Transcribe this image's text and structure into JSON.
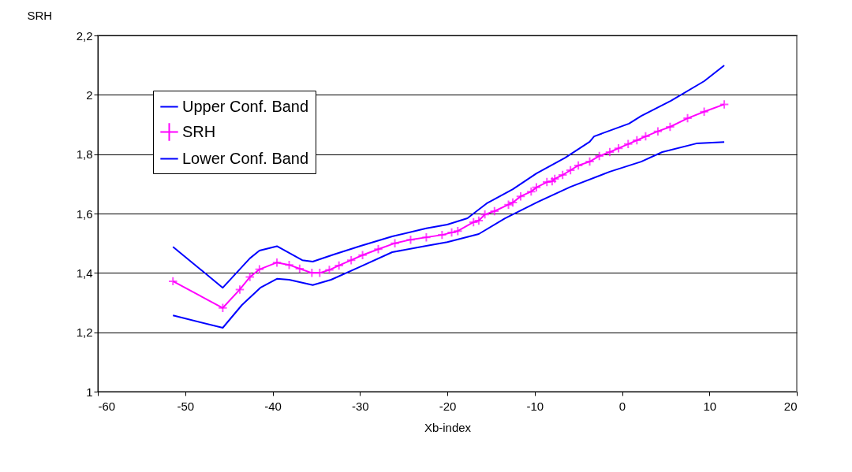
{
  "chart_data": {
    "type": "line",
    "xlabel": "Xb-index",
    "ylabel": "SRH",
    "xlim": [
      -60,
      20
    ],
    "xticks": [
      -60,
      -50,
      -40,
      -30,
      -20,
      -10,
      0,
      10,
      20
    ],
    "ylim": [
      1,
      2.2
    ],
    "yticks": [
      1,
      {
        "value": 1.2,
        "label": "1,2"
      },
      {
        "value": 1.4,
        "label": "1,4"
      },
      {
        "value": 1.6,
        "label": "1,6"
      },
      {
        "value": 1.8,
        "label": "1,8"
      },
      2,
      {
        "value": 2.2,
        "label": "2,2"
      }
    ],
    "grid": "y",
    "legend": "top left",
    "line_style": "solid",
    "series": [
      {
        "name": "Upper Conf. Band",
        "color": "#0000ff",
        "marker": "none",
        "x": [
          -51.4,
          -45.7,
          -42.6,
          -41.5,
          -39.5,
          -36.6,
          -35.4,
          -33.0,
          -29.9,
          -26.3,
          -22.4,
          -20.0,
          -17.7,
          -15.5,
          -12.5,
          -9.8,
          -6.5,
          -3.7,
          -3.2,
          0.8,
          2.2,
          5.6,
          9.4,
          11.7
        ],
        "values": [
          1.488,
          1.35,
          1.449,
          1.475,
          1.49,
          1.443,
          1.438,
          1.462,
          1.491,
          1.523,
          1.55,
          1.563,
          1.584,
          1.634,
          1.682,
          1.735,
          1.788,
          1.842,
          1.86,
          1.903,
          1.929,
          1.98,
          2.046,
          2.099
        ]
      },
      {
        "name": "SRH",
        "color": "#ff00ff",
        "marker": "cross",
        "x": [
          -51.4,
          -45.7,
          -43.75,
          -42.6,
          -41.5,
          -39.5,
          -38.1,
          -36.9,
          -35.5,
          -34.6,
          -33.5,
          -32.4,
          -31.0,
          -29.7,
          -27.9,
          -26.0,
          -24.2,
          -22.4,
          -20.6,
          -19.5,
          -18.8,
          -17.0,
          -16.4,
          -15.7,
          -14.6,
          -13.0,
          -12.5,
          -11.6,
          -10.4,
          -9.8,
          -8.6,
          -8.0,
          -7.7,
          -6.8,
          -5.9,
          -5.0,
          -3.7,
          -2.6,
          -1.4,
          -0.4,
          0.7,
          1.7,
          2.7,
          4.1,
          5.5,
          7.5,
          9.4,
          11.7
        ],
        "values": [
          1.372,
          1.282,
          1.344,
          1.386,
          1.412,
          1.435,
          1.427,
          1.414,
          1.4,
          1.4,
          1.41,
          1.425,
          1.443,
          1.46,
          1.48,
          1.5,
          1.512,
          1.52,
          1.528,
          1.536,
          1.541,
          1.571,
          1.576,
          1.597,
          1.608,
          1.63,
          1.637,
          1.658,
          1.674,
          1.688,
          1.706,
          1.709,
          1.717,
          1.73,
          1.746,
          1.762,
          1.775,
          1.794,
          1.807,
          1.82,
          1.834,
          1.847,
          1.86,
          1.877,
          1.892,
          1.921,
          1.943,
          1.968
        ]
      },
      {
        "name": "Lower Conf. Band",
        "color": "#0000ff",
        "marker": "none",
        "x": [
          -51.4,
          -45.7,
          -43.5,
          -41.4,
          -39.5,
          -38.1,
          -35.4,
          -33.3,
          -29.9,
          -26.3,
          -22.4,
          -20.0,
          -16.4,
          -13.4,
          -9.8,
          -5.9,
          -1.4,
          2.2,
          4.6,
          8.5,
          11.7
        ],
        "values": [
          1.257,
          1.215,
          1.292,
          1.35,
          1.38,
          1.377,
          1.359,
          1.377,
          1.422,
          1.47,
          1.491,
          1.504,
          1.531,
          1.584,
          1.637,
          1.69,
          1.741,
          1.775,
          1.807,
          1.836,
          1.841
        ]
      }
    ]
  }
}
